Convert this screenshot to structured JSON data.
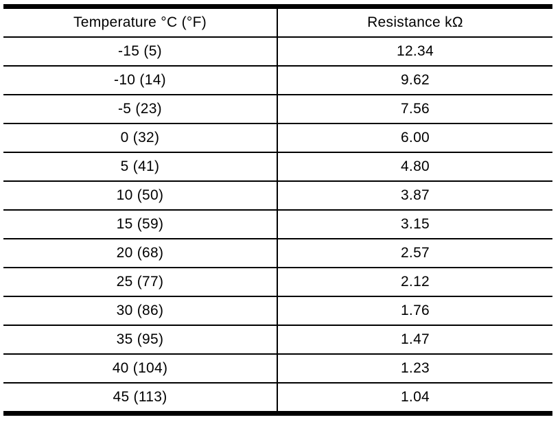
{
  "colors": {
    "background": "#ffffff",
    "text": "#000000",
    "border": "#000000"
  },
  "table": {
    "columns": [
      "Temperature °C (°F)",
      "Resistance kΩ"
    ],
    "rows": [
      [
        "-15 (5)",
        "12.34"
      ],
      [
        "-10 (14)",
        "9.62"
      ],
      [
        "-5 (23)",
        "7.56"
      ],
      [
        "0 (32)",
        "6.00"
      ],
      [
        "5 (41)",
        "4.80"
      ],
      [
        "10 (50)",
        "3.87"
      ],
      [
        "15 (59)",
        "3.15"
      ],
      [
        "20 (68)",
        "2.57"
      ],
      [
        "25 (77)",
        "2.12"
      ],
      [
        "30 (86)",
        "1.76"
      ],
      [
        "35 (95)",
        "1.47"
      ],
      [
        "40 (104)",
        "1.23"
      ],
      [
        "45 (113)",
        "1.04"
      ]
    ]
  },
  "chart_data": {
    "type": "table",
    "title": "",
    "columns": [
      "Temperature °C (°F)",
      "Resistance kΩ"
    ],
    "temperature_c": [
      -15,
      -10,
      -5,
      0,
      5,
      10,
      15,
      20,
      25,
      30,
      35,
      40,
      45
    ],
    "temperature_f": [
      5,
      14,
      23,
      32,
      41,
      50,
      59,
      68,
      77,
      86,
      95,
      104,
      113
    ],
    "resistance_kohm": [
      12.34,
      9.62,
      7.56,
      6.0,
      4.8,
      3.87,
      3.15,
      2.57,
      2.12,
      1.76,
      1.47,
      1.23,
      1.04
    ]
  }
}
